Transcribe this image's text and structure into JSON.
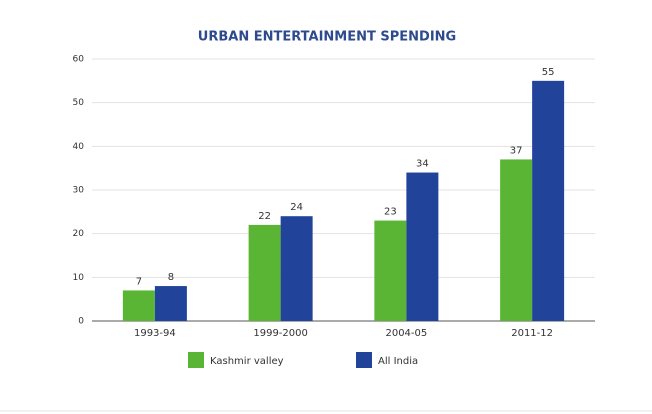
{
  "chart_data": {
    "type": "bar",
    "title": "URBAN ENTERTAINMENT SPENDING",
    "categories": [
      "1993-94",
      "1999-2000",
      "2004-05",
      "2011-12"
    ],
    "series": [
      {
        "name": "Kashmir valley",
        "color": "#5ab535",
        "values": [
          7,
          22,
          23,
          37
        ]
      },
      {
        "name": "All India",
        "color": "#21449a",
        "values": [
          8,
          24,
          34,
          55
        ]
      }
    ],
    "ylim": [
      0,
      60
    ],
    "yticks": [
      0,
      10,
      20,
      30,
      40,
      50,
      60
    ],
    "grid": true,
    "legend": "bottom"
  }
}
